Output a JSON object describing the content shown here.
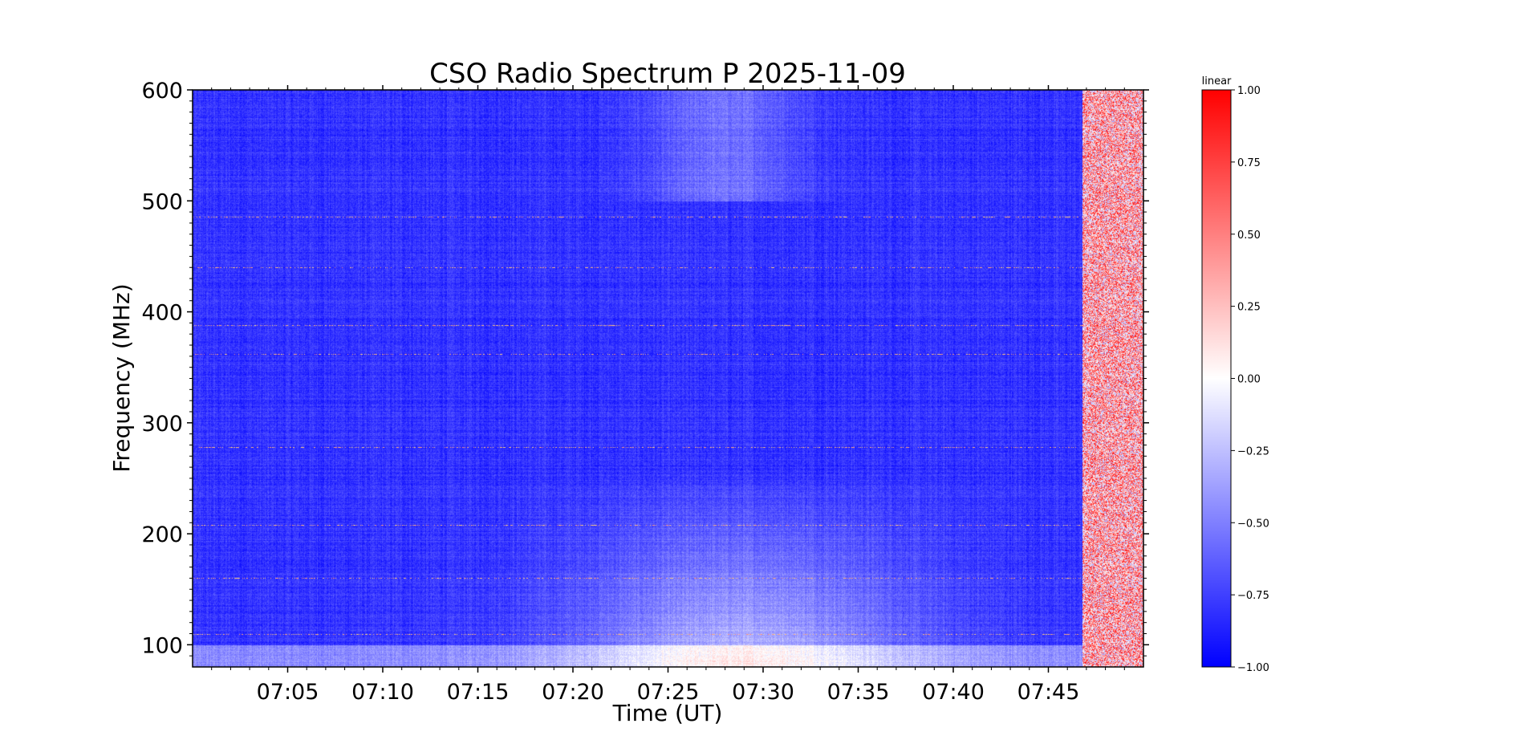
{
  "chart_data": {
    "type": "heatmap",
    "title": "CSO Radio Spectrum P 2025-11-09",
    "xlabel": "Time (UT)",
    "ylabel": "Frequency (MHz)",
    "x_start": "07:00",
    "x_end": "07:50",
    "xlim_minutes": [
      0,
      50
    ],
    "ylim": [
      80,
      600
    ],
    "x_ticks": [
      {
        "label": "07:05",
        "minute": 5
      },
      {
        "label": "07:10",
        "minute": 10
      },
      {
        "label": "07:15",
        "minute": 15
      },
      {
        "label": "07:20",
        "minute": 20
      },
      {
        "label": "07:25",
        "minute": 25
      },
      {
        "label": "07:30",
        "minute": 30
      },
      {
        "label": "07:35",
        "minute": 35
      },
      {
        "label": "07:40",
        "minute": 40
      },
      {
        "label": "07:45",
        "minute": 45
      }
    ],
    "y_ticks": [
      100,
      200,
      300,
      400,
      500,
      600
    ],
    "colorbar": {
      "label": "linear",
      "range": [
        -1.0,
        1.0
      ],
      "ticks": [
        "1.00",
        "0.75",
        "0.50",
        "0.25",
        "0.00",
        "−0.25",
        "−0.50",
        "−0.75",
        "−1.00"
      ],
      "colormap": [
        "#0000ff",
        "#ffffff",
        "#ff0000"
      ]
    },
    "features": {
      "background_level": -0.8,
      "rfi_lines_mhz": [
        110,
        160,
        208,
        278,
        362,
        388,
        440,
        486
      ],
      "burst_start_minute": 46.8,
      "burst_end_minute": 50,
      "burst_level": 0.3
    }
  }
}
